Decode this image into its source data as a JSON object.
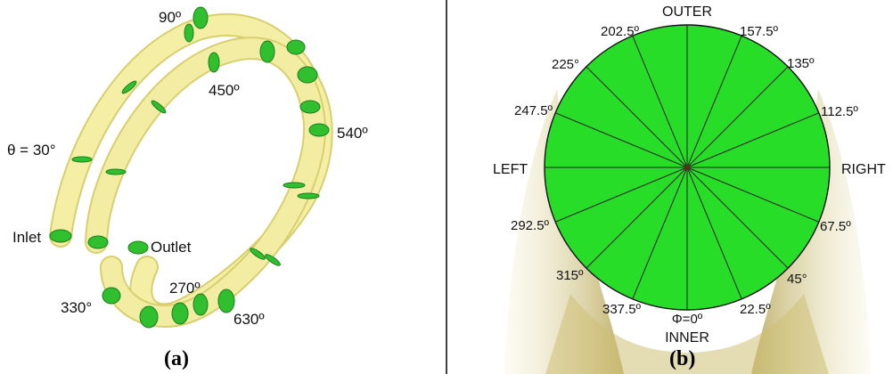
{
  "panel_a": {
    "caption": "(a)",
    "labels": {
      "deg90": "90º",
      "deg450": "450º",
      "deg540": "540º",
      "theta30": "θ = 30°",
      "inlet": "Inlet",
      "outlet": "Outlet",
      "deg270": "270º",
      "deg330": "330°",
      "deg630": "630º"
    }
  },
  "panel_b": {
    "caption": "(b)",
    "labels": {
      "outer": "OUTER",
      "inner": "INNER",
      "left": "LEFT",
      "right": "RIGHT",
      "phi0": "Φ=0º",
      "a225": "22.5º",
      "a45": "45°",
      "a675": "67.5º",
      "a1125": "112.5º",
      "a135": "135º",
      "a1575": "157.5º",
      "a2025": "202.5º",
      "a225b": "225°",
      "a2475": "247.5º",
      "a2925": "292.5º",
      "a315": "315º",
      "a3375": "337.5º"
    }
  },
  "colors": {
    "tube_fill": "#f5f0a8",
    "tube_edge": "#d8cf6e",
    "section_green": "#33cc33",
    "disc_green": "#2bdc2b",
    "cone_shade": "#cdbf74"
  }
}
